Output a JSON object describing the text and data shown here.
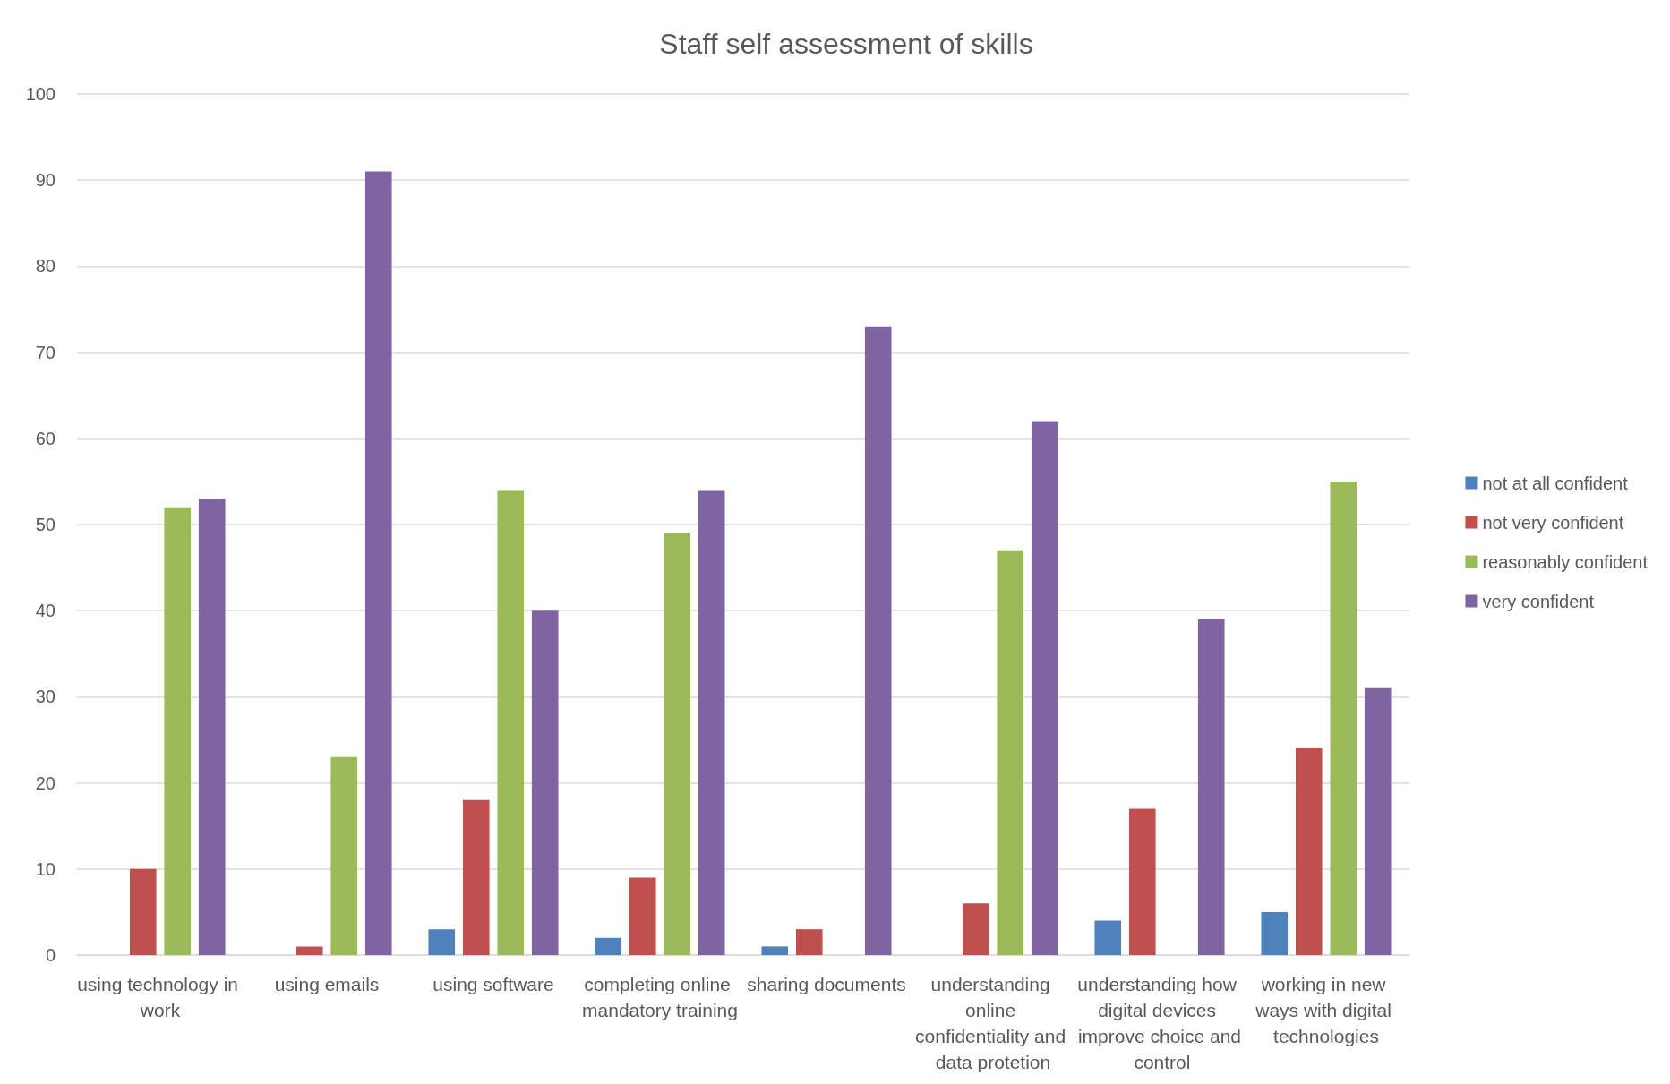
{
  "chart_data": {
    "type": "bar",
    "title": "Staff self assessment of skills",
    "categories": [
      "using technology in work",
      "using emails",
      "using software",
      "completing online mandatory training",
      "sharing documents",
      "understanding online confidentiality and data protetion",
      "understanding how digital devices improve choice and control",
      "working in new ways with digital technologies"
    ],
    "series": [
      {
        "name": "not at all confident",
        "color": "#4f81bd",
        "values": [
          0,
          0,
          3,
          2,
          1,
          0,
          4,
          5
        ]
      },
      {
        "name": "not very confident",
        "color": "#c0504d",
        "values": [
          10,
          1,
          18,
          9,
          3,
          6,
          17,
          24
        ]
      },
      {
        "name": "reasonably confident",
        "color": "#9bbb59",
        "values": [
          52,
          23,
          54,
          49,
          0,
          47,
          0,
          55
        ]
      },
      {
        "name": "very confident",
        "color": "#8064a2",
        "values": [
          53,
          91,
          40,
          54,
          73,
          62,
          39,
          31
        ]
      }
    ],
    "ylim": [
      0,
      100
    ],
    "yticks": [
      0,
      10,
      20,
      30,
      40,
      50,
      60,
      70,
      80,
      90,
      100
    ],
    "grid": "y",
    "legend": "right"
  }
}
